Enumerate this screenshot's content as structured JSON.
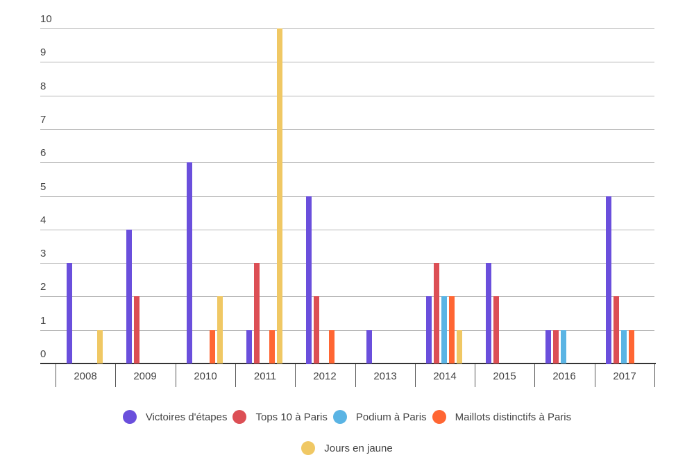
{
  "chart_data": {
    "type": "bar",
    "title": "",
    "xlabel": "",
    "ylabel": "",
    "ylim": [
      0,
      10
    ],
    "yticks": [
      0,
      1,
      2,
      3,
      4,
      5,
      6,
      7,
      8,
      9,
      10
    ],
    "grid": true,
    "legend_position": "bottom",
    "categories": [
      "2008",
      "2009",
      "2010",
      "2011",
      "2012",
      "2013",
      "2014",
      "2015",
      "2016",
      "2017"
    ],
    "series": [
      {
        "name": "Victoires d'étapes",
        "color": "#6a4fdc",
        "values": [
          3,
          4,
          6,
          1,
          5,
          1,
          2,
          3,
          1,
          5
        ]
      },
      {
        "name": "Tops 10 à Paris",
        "color": "#dc4f55",
        "values": [
          0,
          2,
          0,
          3,
          2,
          0,
          3,
          2,
          1,
          2
        ]
      },
      {
        "name": "Podium à Paris",
        "color": "#5ab4e4",
        "values": [
          0,
          0,
          0,
          0,
          0,
          0,
          2,
          0,
          1,
          1
        ]
      },
      {
        "name": "Maillots distinctifs à Paris",
        "color": "#ff6633",
        "values": [
          0,
          0,
          1,
          1,
          1,
          0,
          2,
          0,
          0,
          1
        ]
      },
      {
        "name": "Jours en jaune",
        "color": "#f0c864",
        "values": [
          1,
          0,
          2,
          10,
          0,
          0,
          1,
          0,
          0,
          0
        ]
      }
    ]
  },
  "legend": {
    "row1": [
      "Victoires d'étapes",
      "Tops 10 à Paris",
      "Podium à Paris",
      "Maillots distinctifs à Paris"
    ],
    "row2": [
      "Jours en jaune"
    ]
  }
}
